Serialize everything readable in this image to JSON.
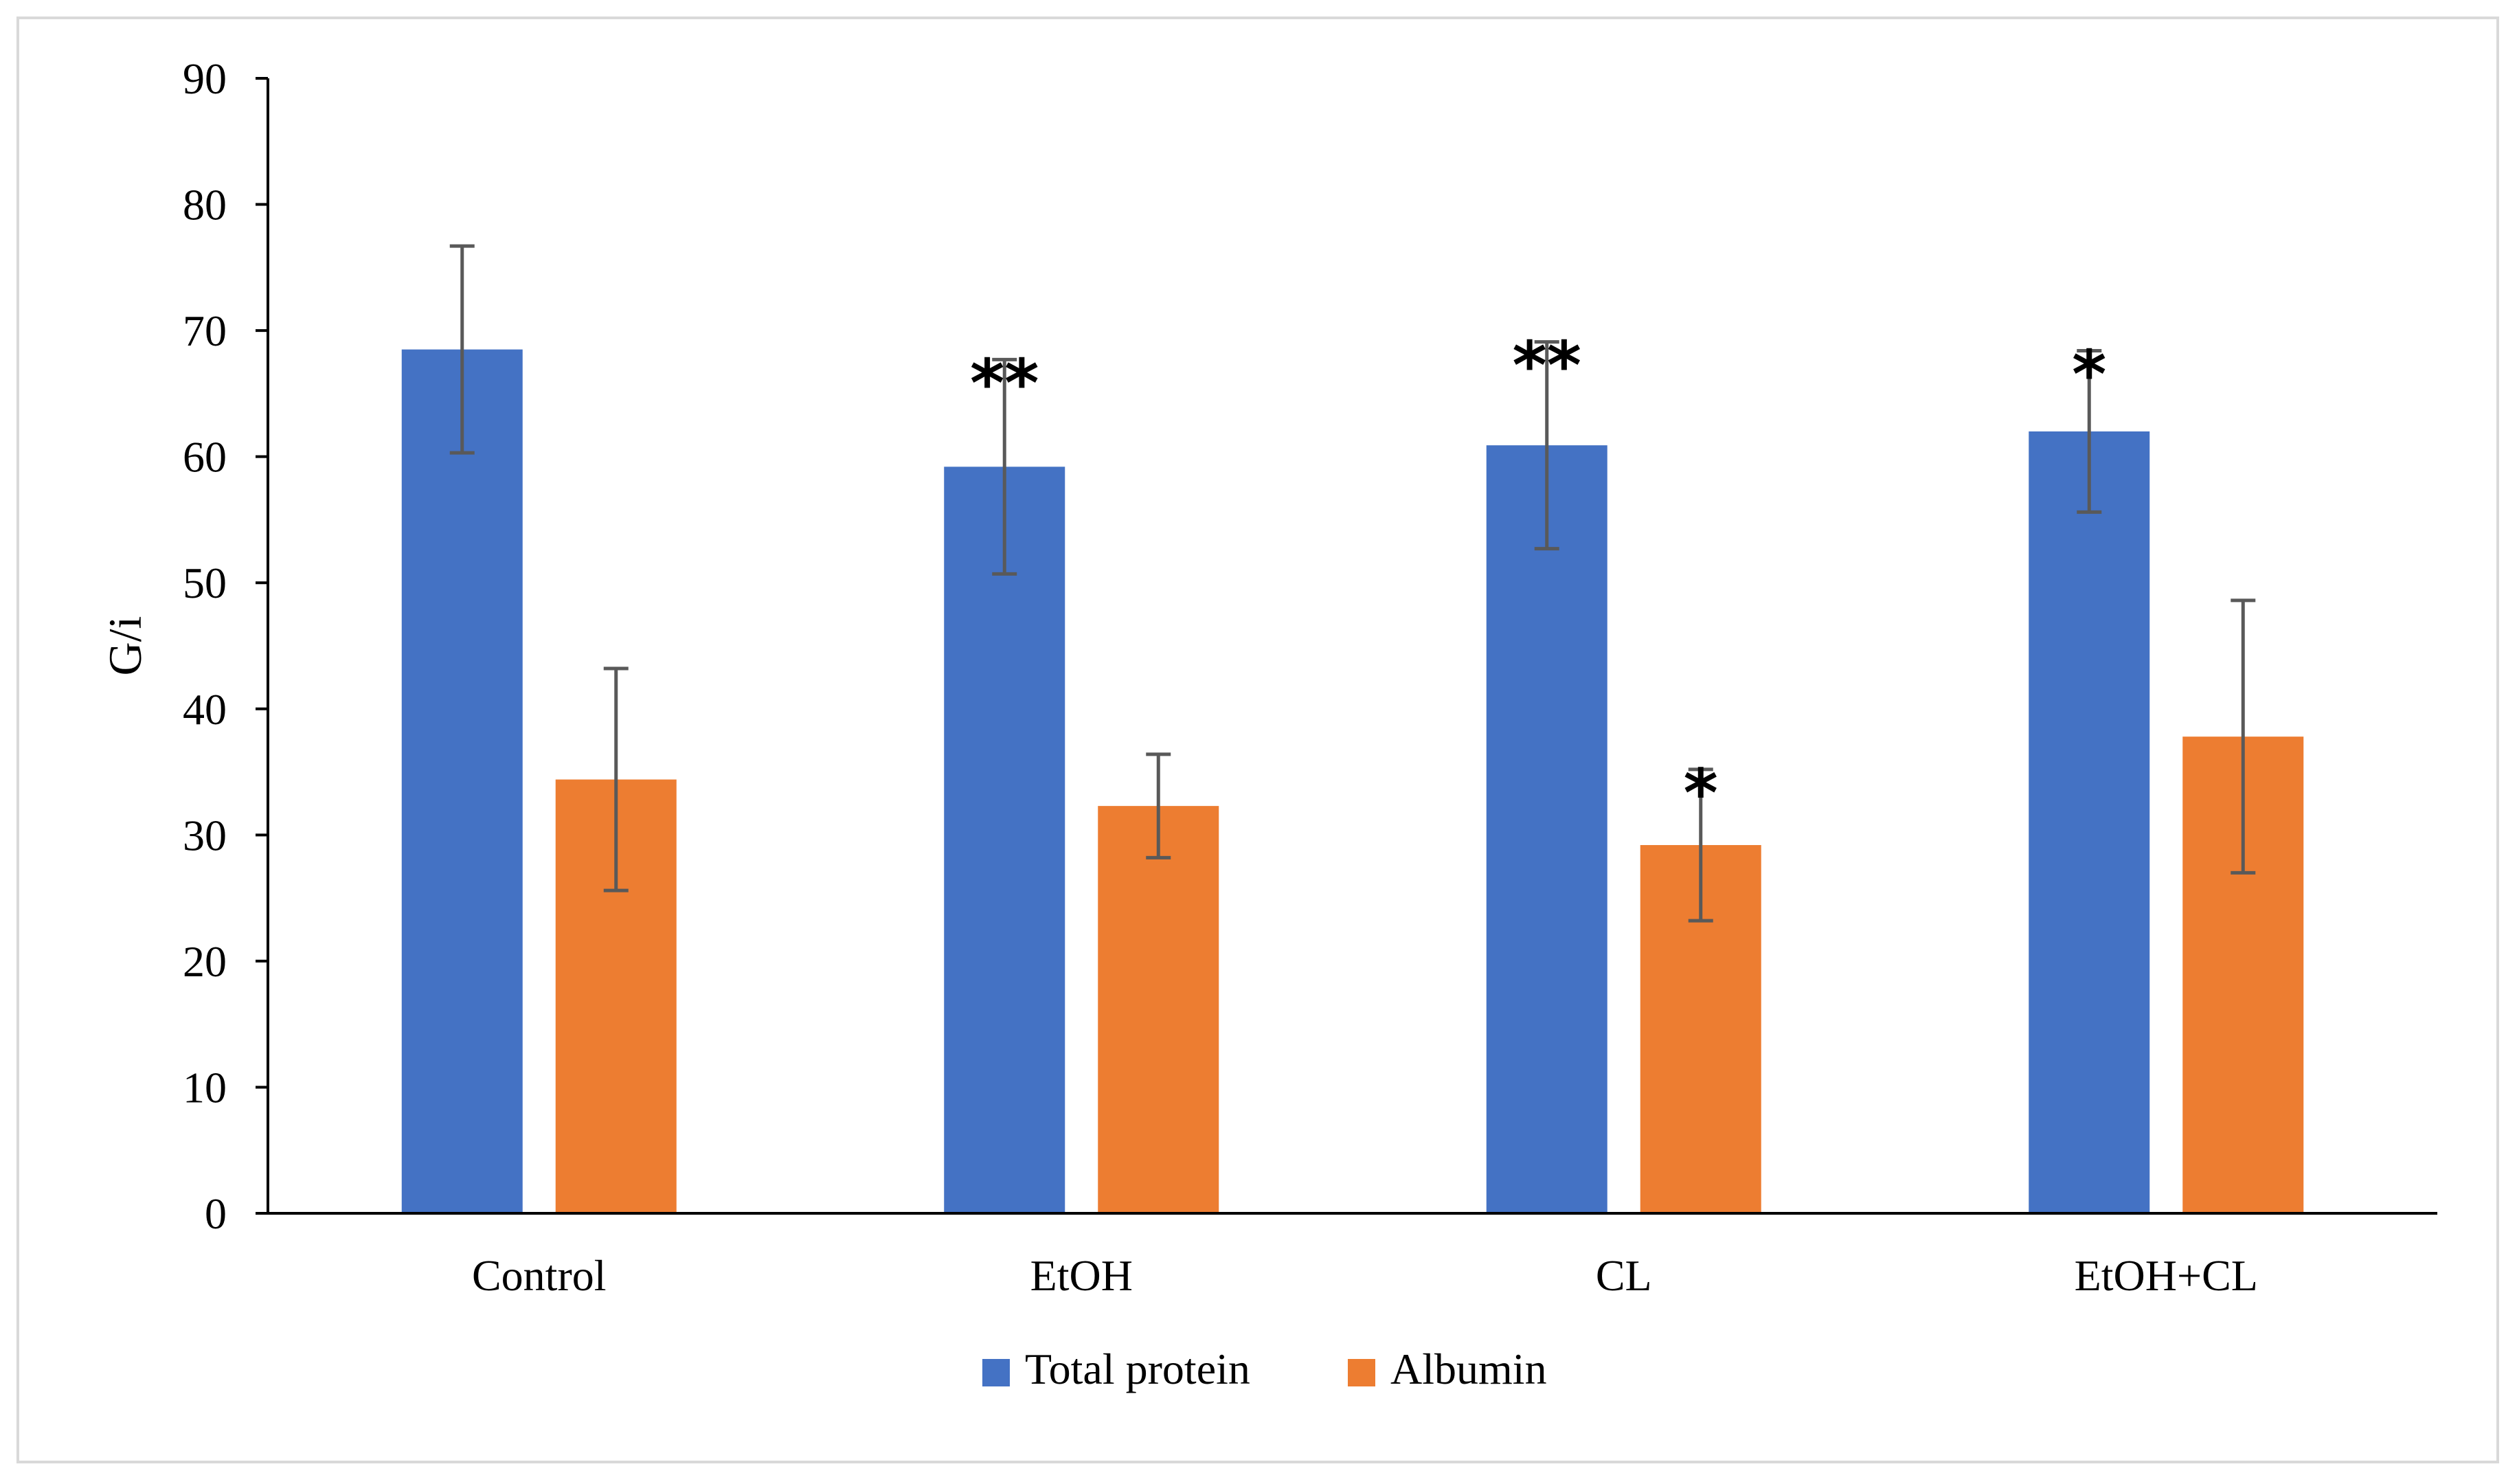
{
  "chart_data": {
    "type": "bar",
    "title": "",
    "xlabel": "",
    "ylabel": "G/i",
    "ylim": [
      0,
      90
    ],
    "yticks": [
      "0",
      "10",
      "20",
      "30",
      "40",
      "50",
      "60",
      "70",
      "80",
      "90"
    ],
    "categories": [
      "Control",
      "EtOH",
      "CL",
      "EtOH+CL"
    ],
    "series": [
      {
        "name": "Total protein",
        "color": "#4472C4",
        "values": [
          68.5,
          59.2,
          60.9,
          62.0
        ],
        "error": [
          8.2,
          8.5,
          8.2,
          6.4
        ],
        "significance": [
          "",
          "**",
          "**",
          "*"
        ]
      },
      {
        "name": "Albumin",
        "color": "#ED7D31",
        "values": [
          34.4,
          32.3,
          29.2,
          37.8
        ],
        "error": [
          8.8,
          4.1,
          6.0,
          10.8
        ],
        "significance": [
          "",
          "",
          "*",
          ""
        ]
      }
    ],
    "legend_position": "bottom",
    "grid": false
  }
}
